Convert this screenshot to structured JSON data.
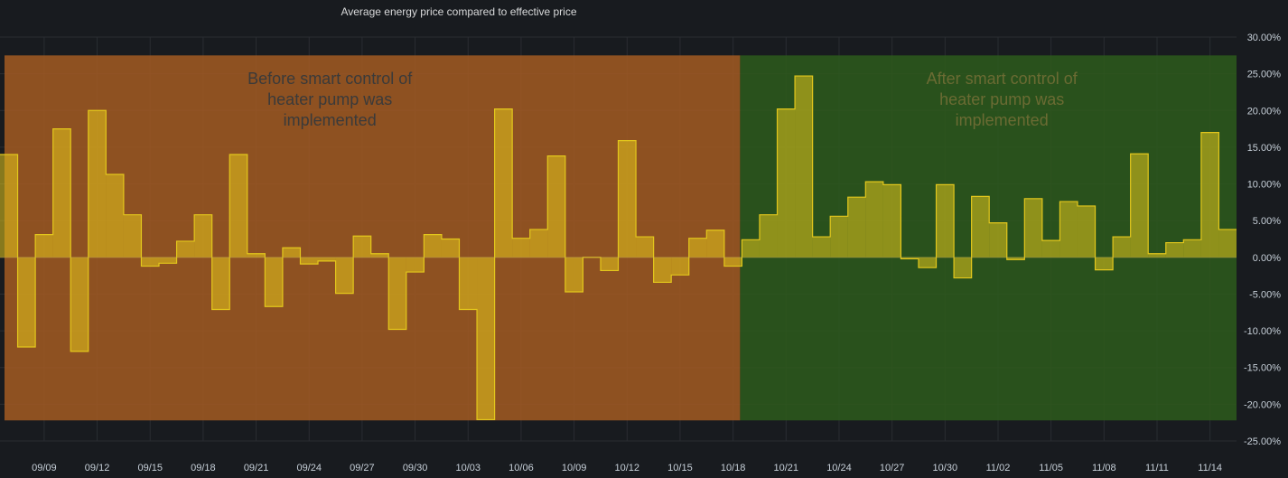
{
  "panel": {
    "title": "Average energy price compared to effective price"
  },
  "chart_data": {
    "type": "bar",
    "style": "step",
    "title": "Average energy price compared to effective price",
    "ylim": [
      -25,
      30
    ],
    "y_ticks": [
      "30.00%",
      "25.00%",
      "20.00%",
      "15.00%",
      "10.00%",
      "5.00%",
      "0.00%",
      "-5.00%",
      "-10.00%",
      "-15.00%",
      "-20.00%",
      "-25.00%"
    ],
    "x_ticks": [
      "09/09",
      "09/12",
      "09/15",
      "09/18",
      "09/21",
      "09/24",
      "09/27",
      "09/30",
      "10/03",
      "10/06",
      "10/09",
      "10/12",
      "10/15",
      "10/18",
      "10/21",
      "10/24",
      "10/27",
      "10/30",
      "11/02",
      "11/05",
      "11/08",
      "11/11",
      "11/14"
    ],
    "x_start": "09/07",
    "series": [
      {
        "values": [
          14,
          -12.2,
          3.1,
          17.5,
          -12.8,
          20,
          11.3,
          5.8,
          -1.2,
          -0.8,
          2.2,
          5.8,
          -7.1,
          14,
          0.5,
          -6.7,
          1.3,
          -0.9,
          -0.5,
          -4.9,
          2.9,
          0.5,
          -9.8,
          -2,
          3.1,
          2.5,
          -7.1,
          -22.1,
          20.2,
          2.6,
          3.8,
          13.8,
          -4.7,
          0,
          -1.8,
          15.9,
          2.8,
          -3.4,
          -2.4,
          2.6,
          3.7,
          -1.2,
          2.4,
          5.8,
          20.2,
          24.7,
          2.8,
          5.6,
          8.2,
          10.3,
          9.9,
          -0.2,
          -1.4,
          9.9,
          -2.8,
          8.3,
          4.7,
          -0.3,
          8,
          2.3,
          7.6,
          7,
          -1.7,
          2.8,
          14.1,
          0.5,
          2,
          2.4,
          17,
          3.8
        ]
      }
    ],
    "color": "#e3c71c",
    "regions": [
      {
        "label": "Before smart control of heater pump was implemented",
        "lines": [
          "Before smart control of",
          "heater pump was",
          "implemented"
        ],
        "from": "09/07",
        "to": "10/19",
        "color": "#a35a22"
      },
      {
        "label": "After smart control of heater pump was implemented",
        "lines": [
          "After smart control of",
          "heater pump was",
          "implemented"
        ],
        "from": "10/19",
        "to": "11/15",
        "color": "#2d5a1c"
      }
    ],
    "grid": true,
    "y_axis_side": "right"
  }
}
